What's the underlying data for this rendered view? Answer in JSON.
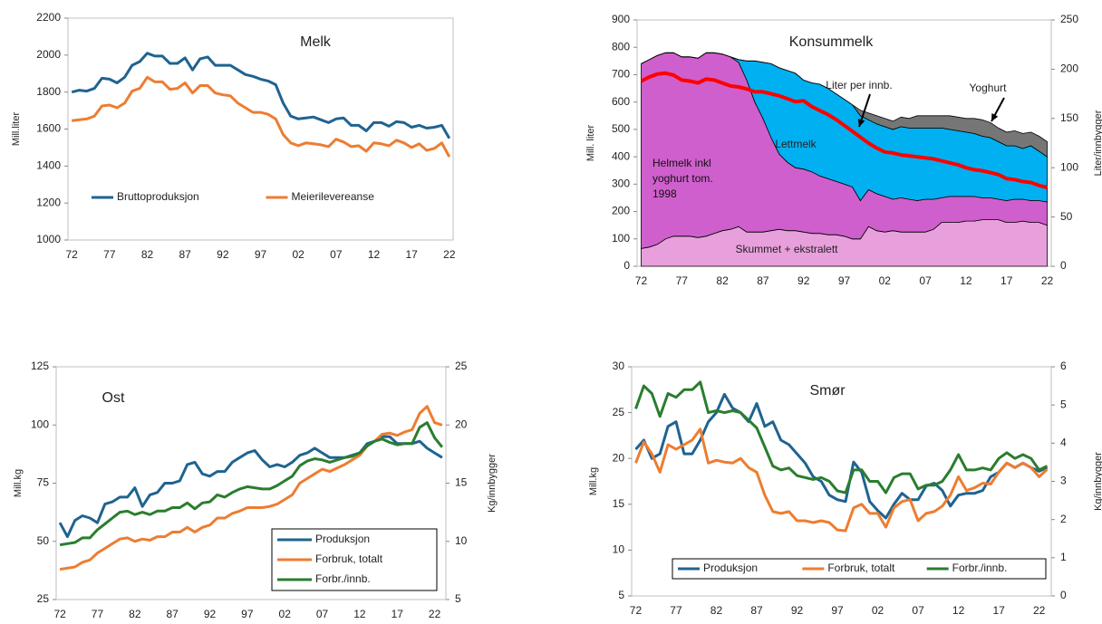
{
  "chart_data": [
    {
      "type": "line",
      "title": "Melk",
      "y_label": "Mill.liter",
      "categories": [
        "72",
        null,
        null,
        null,
        null,
        "77",
        null,
        null,
        null,
        null,
        "82",
        null,
        null,
        null,
        null,
        "87",
        null,
        null,
        null,
        null,
        "92",
        null,
        null,
        null,
        null,
        "97",
        null,
        null,
        null,
        null,
        "02",
        null,
        null,
        null,
        null,
        "07",
        null,
        null,
        null,
        null,
        "12",
        null,
        null,
        null,
        null,
        "17",
        null,
        null,
        null,
        null,
        "22"
      ],
      "ylim": [
        1000,
        2200
      ],
      "yticks": [
        1000,
        1200,
        1400,
        1600,
        1800,
        2000,
        2200
      ],
      "legend": "bottom",
      "series": [
        {
          "name": "Bruttoproduksjon",
          "color": "#1f6391",
          "values": [
            1800,
            1810,
            1805,
            1820,
            1875,
            1870,
            1850,
            1880,
            1945,
            1965,
            2010,
            1995,
            1995,
            1955,
            1955,
            1985,
            1920,
            1980,
            1990,
            1945,
            1945,
            1945,
            1920,
            1895,
            1885,
            1870,
            1860,
            1840,
            1740,
            1670,
            1655,
            1660,
            1665,
            1650,
            1635,
            1655,
            1660,
            1620,
            1620,
            1590,
            1635,
            1635,
            1615,
            1640,
            1635,
            1610,
            1620,
            1605,
            1610,
            1620,
            1550
          ]
        },
        {
          "name": "Meierilevereanse",
          "color": "#ed7d31",
          "values": [
            1645,
            1650,
            1655,
            1670,
            1725,
            1730,
            1715,
            1740,
            1805,
            1820,
            1880,
            1855,
            1855,
            1815,
            1820,
            1850,
            1795,
            1835,
            1835,
            1795,
            1785,
            1780,
            1740,
            1715,
            1690,
            1690,
            1680,
            1655,
            1570,
            1525,
            1510,
            1525,
            1520,
            1515,
            1505,
            1545,
            1530,
            1505,
            1510,
            1480,
            1525,
            1520,
            1510,
            1540,
            1525,
            1500,
            1520,
            1485,
            1495,
            1525,
            1450
          ]
        }
      ]
    },
    {
      "type": "area",
      "title": "Konsummelk",
      "y_label": "Mill. liter",
      "y2_label": "Liter/innbygger",
      "categories": [
        "72",
        null,
        null,
        null,
        null,
        "77",
        null,
        null,
        null,
        null,
        "82",
        null,
        null,
        null,
        null,
        "87",
        null,
        null,
        null,
        null,
        "92",
        null,
        null,
        null,
        null,
        "97",
        null,
        null,
        null,
        null,
        "02",
        null,
        null,
        null,
        null,
        "07",
        null,
        null,
        null,
        null,
        "12",
        null,
        null,
        null,
        null,
        "17",
        null,
        null,
        null,
        null,
        "22"
      ],
      "ylim": [
        0,
        900
      ],
      "yticks": [
        0,
        100,
        200,
        300,
        400,
        500,
        600,
        700,
        800,
        900
      ],
      "y2lim": [
        0,
        250
      ],
      "y2ticks": [
        0,
        50,
        100,
        150,
        200,
        250
      ],
      "series": [
        {
          "name": "Skummet + ekstralett",
          "color": "#e8a0dc",
          "values": [
            65,
            70,
            80,
            100,
            110,
            110,
            110,
            105,
            110,
            120,
            130,
            135,
            145,
            125,
            125,
            125,
            130,
            135,
            130,
            130,
            125,
            120,
            120,
            115,
            115,
            110,
            100,
            100,
            145,
            130,
            125,
            130,
            125,
            125,
            125,
            125,
            135,
            160,
            160,
            160,
            165,
            165,
            170,
            170,
            170,
            160,
            160,
            165,
            160,
            160,
            150
          ]
        },
        {
          "name": "Helmelk inkl yoghurt tom. 1998",
          "color": "#cf5fcc",
          "values": [
            675,
            685,
            690,
            680,
            670,
            655,
            655,
            655,
            670,
            660,
            645,
            630,
            600,
            555,
            475,
            415,
            340,
            275,
            250,
            230,
            230,
            225,
            210,
            205,
            195,
            190,
            190,
            140,
            135,
            135,
            130,
            115,
            125,
            120,
            115,
            120,
            110,
            90,
            95,
            95,
            90,
            90,
            80,
            80,
            75,
            80,
            85,
            80,
            80,
            80,
            85
          ]
        },
        {
          "name": "Lettmelk",
          "color": "#00b0f0",
          "values": [
            0,
            0,
            0,
            0,
            0,
            0,
            0,
            0,
            0,
            0,
            0,
            0,
            10,
            70,
            150,
            205,
            270,
            315,
            335,
            345,
            325,
            325,
            335,
            330,
            320,
            310,
            300,
            310,
            255,
            255,
            255,
            255,
            260,
            260,
            265,
            260,
            260,
            255,
            245,
            240,
            235,
            230,
            225,
            220,
            210,
            200,
            195,
            185,
            200,
            180,
            165
          ]
        },
        {
          "name": "Yoghurt",
          "color": "#767676",
          "values": [
            0,
            0,
            0,
            0,
            0,
            0,
            0,
            0,
            0,
            0,
            0,
            0,
            0,
            0,
            0,
            0,
            0,
            0,
            0,
            0,
            0,
            0,
            0,
            0,
            0,
            0,
            0,
            20,
            25,
            30,
            30,
            30,
            35,
            35,
            45,
            45,
            45,
            45,
            50,
            50,
            50,
            55,
            60,
            55,
            50,
            50,
            55,
            55,
            50,
            55,
            55
          ]
        },
        {
          "name": "Liter per innb.",
          "color": "#ff0000",
          "axis": "y2",
          "values": [
            188,
            192,
            195,
            196,
            194,
            189,
            188,
            186,
            190,
            189,
            186,
            183,
            182,
            180,
            177,
            177,
            175,
            173,
            170,
            167,
            168,
            162,
            158,
            154,
            149,
            143,
            137,
            131,
            125,
            120,
            116,
            115,
            113,
            112,
            111,
            110,
            109,
            107,
            105,
            103,
            100,
            98,
            97,
            95,
            93,
            89,
            88,
            86,
            85,
            82,
            80
          ]
        }
      ]
    },
    {
      "type": "line",
      "title": "Ost",
      "y_label": "Mill.kg",
      "y2_label": "Kg/innbygger",
      "categories": [
        "72",
        null,
        null,
        null,
        null,
        "77",
        null,
        null,
        null,
        null,
        "82",
        null,
        null,
        null,
        null,
        "87",
        null,
        null,
        null,
        null,
        "92",
        null,
        null,
        null,
        null,
        "97",
        null,
        null,
        null,
        null,
        "02",
        null,
        null,
        null,
        null,
        "07",
        null,
        null,
        null,
        null,
        "12",
        null,
        null,
        null,
        null,
        "17",
        null,
        null,
        null,
        null,
        "22",
        null
      ],
      "ylim": [
        25,
        125
      ],
      "yticks": [
        25,
        50,
        75,
        100,
        125
      ],
      "y2lim": [
        5,
        25
      ],
      "y2ticks": [
        5,
        10,
        15,
        20,
        25
      ],
      "legend": "lower right",
      "legend_frame": true,
      "series": [
        {
          "name": "Produksjon",
          "color": "#1f6391",
          "values": [
            58,
            52,
            59,
            61,
            60,
            58,
            66,
            67,
            69,
            69,
            73,
            65,
            70,
            71,
            75,
            75,
            76,
            83,
            84,
            79,
            78,
            80,
            80,
            84,
            86,
            88,
            89,
            85,
            82,
            83,
            82,
            84,
            87,
            88,
            90,
            88,
            86,
            86,
            86,
            87,
            88,
            92,
            93,
            95,
            95,
            92,
            92,
            92,
            93,
            90,
            88,
            86
          ]
        },
        {
          "name": "Forbruk, totalt",
          "color": "#ed7d31",
          "values": [
            38,
            38.5,
            39,
            41,
            42,
            45,
            47,
            49,
            51,
            51.5,
            50,
            51,
            50.5,
            52,
            52,
            54,
            54,
            56,
            54,
            56,
            57,
            60,
            60,
            62,
            63,
            64.5,
            64.5,
            64.5,
            65,
            66,
            68,
            70,
            75,
            77,
            79,
            81,
            80,
            81.5,
            83,
            85,
            87,
            91,
            93,
            96,
            96.5,
            95.5,
            97,
            98,
            105,
            108,
            101,
            100
          ]
        },
        {
          "name": "Forbr./innb.",
          "color": "#2a7d2e",
          "axis": "y2",
          "values": [
            9.7,
            9.8,
            9.9,
            10.3,
            10.3,
            11,
            11.5,
            12,
            12.5,
            12.6,
            12.3,
            12.5,
            12.3,
            12.6,
            12.6,
            12.9,
            12.9,
            13.3,
            12.8,
            13.3,
            13.4,
            14,
            13.8,
            14.2,
            14.5,
            14.7,
            14.6,
            14.5,
            14.5,
            14.8,
            15.2,
            15.6,
            16.5,
            16.9,
            17.1,
            17,
            16.8,
            17,
            17.2,
            17.3,
            17.6,
            18.2,
            18.6,
            18.8,
            18.5,
            18.3,
            18.4,
            18.4,
            19.8,
            20.2,
            18.9,
            18.1
          ]
        }
      ]
    },
    {
      "type": "line",
      "title": "Smør",
      "y_label": "Mill.kg",
      "y2_label": "Kg/innbygger",
      "categories": [
        "72",
        null,
        null,
        null,
        null,
        "77",
        null,
        null,
        null,
        null,
        "82",
        null,
        null,
        null,
        null,
        "87",
        null,
        null,
        null,
        null,
        "92",
        null,
        null,
        null,
        null,
        "97",
        null,
        null,
        null,
        null,
        "02",
        null,
        null,
        null,
        null,
        "07",
        null,
        null,
        null,
        null,
        "12",
        null,
        null,
        null,
        null,
        "17",
        null,
        null,
        null,
        null,
        "22",
        null
      ],
      "ylim": [
        5,
        30
      ],
      "yticks": [
        5,
        10,
        15,
        20,
        25,
        30
      ],
      "y2lim": [
        0,
        6
      ],
      "y2ticks": [
        0,
        1,
        2,
        3,
        4,
        5,
        6
      ],
      "legend": "bottom",
      "legend_frame": true,
      "series": [
        {
          "name": "Produksjon",
          "color": "#1f6391",
          "values": [
            21,
            22,
            20,
            20.5,
            23.5,
            24,
            20.5,
            20.5,
            22,
            24,
            25,
            27,
            25.5,
            25,
            24,
            26,
            23.5,
            24,
            22,
            21.5,
            20.5,
            19.5,
            18,
            17.5,
            16,
            15.5,
            15.3,
            19.6,
            18.5,
            15.3,
            14.3,
            13.5,
            15,
            16.2,
            15.5,
            15.5,
            17,
            17.3,
            16.5,
            14.8,
            16,
            16.2,
            16.2,
            16.5,
            18,
            18.5,
            19.5,
            19,
            19.5,
            19,
            18.6,
            19
          ]
        },
        {
          "name": "Forbruk, totalt",
          "color": "#ed7d31",
          "values": [
            19.5,
            21.8,
            20.5,
            18.5,
            21.5,
            21,
            21.5,
            22,
            23.2,
            19.5,
            19.8,
            19.6,
            19.5,
            20,
            19,
            18.5,
            16,
            14.2,
            14,
            14.2,
            13.2,
            13.2,
            13,
            13.2,
            13,
            12.2,
            12.1,
            14.6,
            15,
            14,
            14,
            12.5,
            14.6,
            15.3,
            15.5,
            13.2,
            14,
            14.2,
            14.8,
            16,
            18,
            16.5,
            16.8,
            17.3,
            17.2,
            18.5,
            19.5,
            19,
            19.5,
            19,
            18,
            18.8
          ]
        },
        {
          "name": "Forbr./innb.",
          "color": "#2a7d2e",
          "axis": "y2",
          "values": [
            4.9,
            5.5,
            5.3,
            4.7,
            5.3,
            5.2,
            5.4,
            5.4,
            5.6,
            4.8,
            4.85,
            4.8,
            4.85,
            4.8,
            4.6,
            4.4,
            3.9,
            3.4,
            3.3,
            3.35,
            3.15,
            3.1,
            3.05,
            3.1,
            3.0,
            2.75,
            2.7,
            3.3,
            3.3,
            3.0,
            3.0,
            2.7,
            3.1,
            3.2,
            3.2,
            2.8,
            2.9,
            2.9,
            3.0,
            3.3,
            3.7,
            3.3,
            3.3,
            3.35,
            3.3,
            3.6,
            3.75,
            3.6,
            3.7,
            3.6,
            3.3,
            3.4
          ]
        }
      ]
    }
  ]
}
